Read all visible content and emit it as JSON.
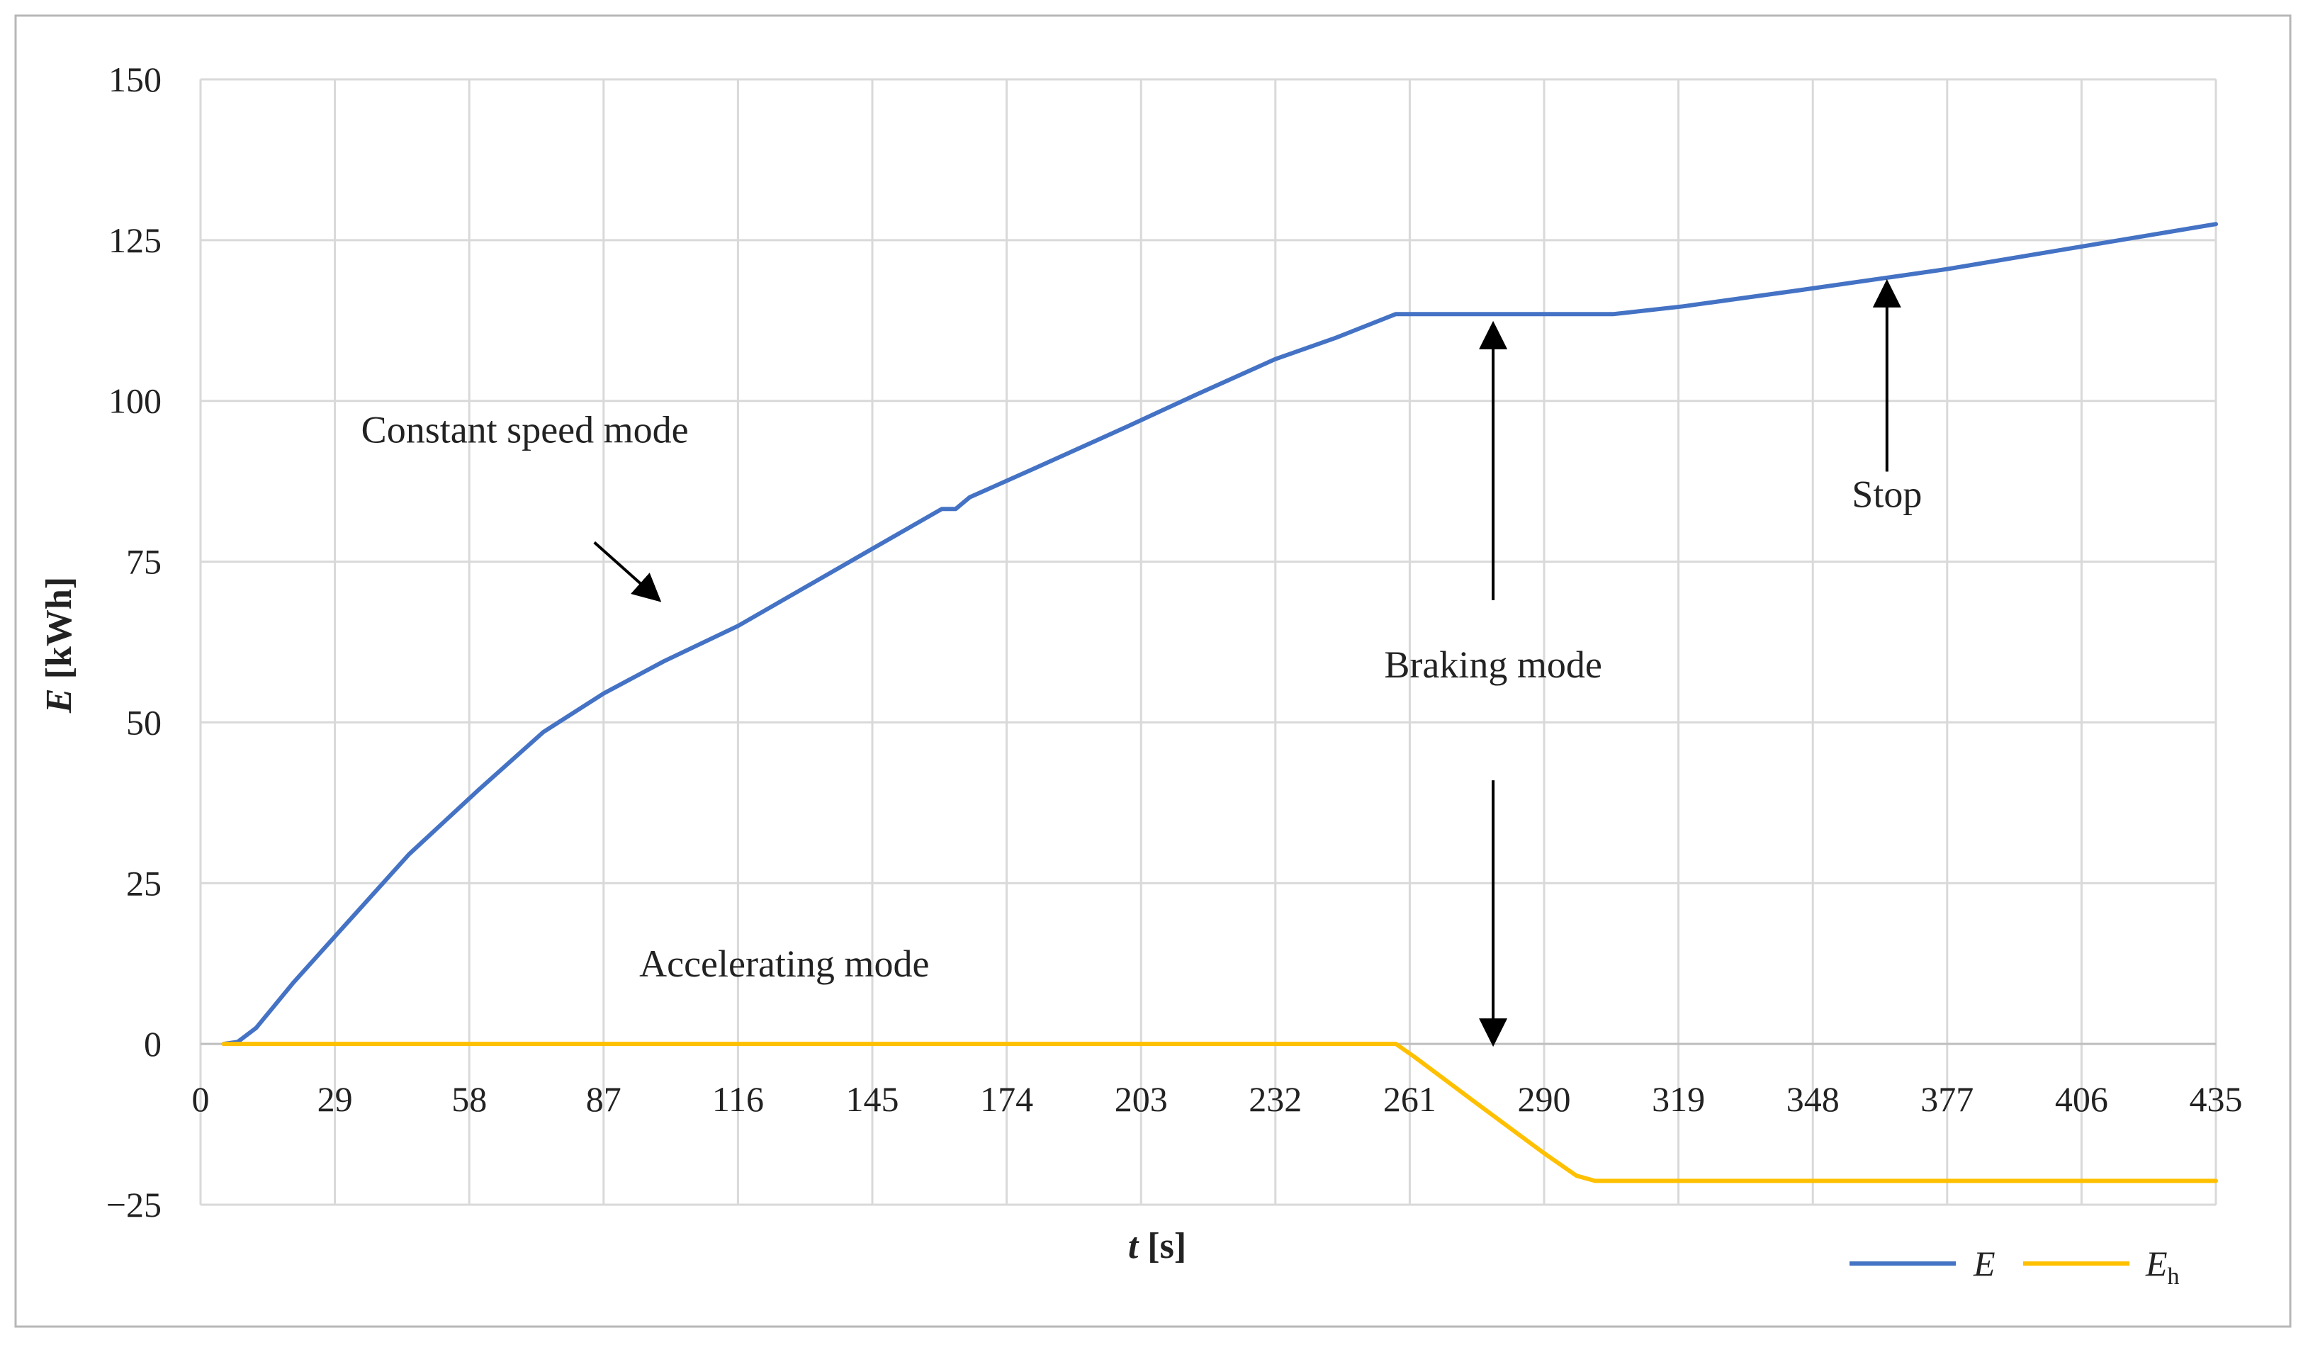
{
  "chart_data": {
    "type": "line",
    "xlabel": {
      "italic": "t",
      "rest": " [s]"
    },
    "ylabel": {
      "italic": "E",
      "rest": " [kWh]"
    },
    "xlim": [
      0,
      435
    ],
    "ylim": [
      -25,
      150
    ],
    "x_ticks": [
      0,
      29,
      58,
      87,
      116,
      145,
      174,
      203,
      232,
      261,
      290,
      319,
      348,
      377,
      406,
      435
    ],
    "y_ticks": [
      -25,
      0,
      25,
      50,
      75,
      100,
      125,
      150
    ],
    "y_tick_labels": [
      "−25",
      "0",
      "25",
      "50",
      "75",
      "100",
      "125",
      "150"
    ],
    "grid": true,
    "legend_position": "bottom-right",
    "series": [
      {
        "name": "E",
        "color": "#4472c4",
        "points": [
          [
            5,
            0
          ],
          [
            8,
            0.3
          ],
          [
            12,
            2.5
          ],
          [
            20,
            9.5
          ],
          [
            30,
            17.5
          ],
          [
            45,
            29.5
          ],
          [
            60,
            39.5
          ],
          [
            74,
            48.5
          ],
          [
            87,
            54.5
          ],
          [
            100,
            59.5
          ],
          [
            116,
            65
          ],
          [
            130,
            70.8
          ],
          [
            145,
            77
          ],
          [
            160,
            83.2
          ],
          [
            163,
            83.2
          ],
          [
            166,
            85
          ],
          [
            180,
            89.5
          ],
          [
            200,
            96
          ],
          [
            215,
            101
          ],
          [
            232,
            106.5
          ],
          [
            245,
            109.8
          ],
          [
            258,
            113.5
          ],
          [
            261,
            113.5
          ],
          [
            280,
            113.5
          ],
          [
            305,
            113.5
          ],
          [
            320,
            114.7
          ],
          [
            348,
            117.5
          ],
          [
            377,
            120.5
          ],
          [
            406,
            124
          ],
          [
            435,
            127.5
          ]
        ]
      },
      {
        "name": "E",
        "name_subscript": "h",
        "color": "#ffc000",
        "points": [
          [
            5,
            0
          ],
          [
            258,
            0
          ],
          [
            262,
            -2
          ],
          [
            275,
            -9
          ],
          [
            290,
            -17
          ],
          [
            297,
            -20.5
          ],
          [
            301,
            -21.3
          ],
          [
            435,
            -21.3
          ]
        ]
      }
    ],
    "annotations": [
      {
        "text": "Constant speed mode",
        "x": 70,
        "y": 93.5,
        "arrow_from": [
          85,
          78
        ],
        "arrow_to": [
          99,
          69
        ]
      },
      {
        "text": "Braking mode",
        "x": 279,
        "y": 57,
        "arrow_up_from": [
          279,
          69
        ],
        "arrow_up_to": [
          279,
          112
        ],
        "arrow_down_from": [
          279,
          41
        ],
        "arrow_down_to": [
          279,
          0
        ]
      },
      {
        "text": "Stop",
        "x": 364,
        "y": 83.5,
        "arrow_from": [
          364,
          89
        ],
        "arrow_to": [
          364,
          118.5
        ]
      },
      {
        "text": "Accelerating mode",
        "x": 126,
        "y": 10.5
      }
    ]
  }
}
